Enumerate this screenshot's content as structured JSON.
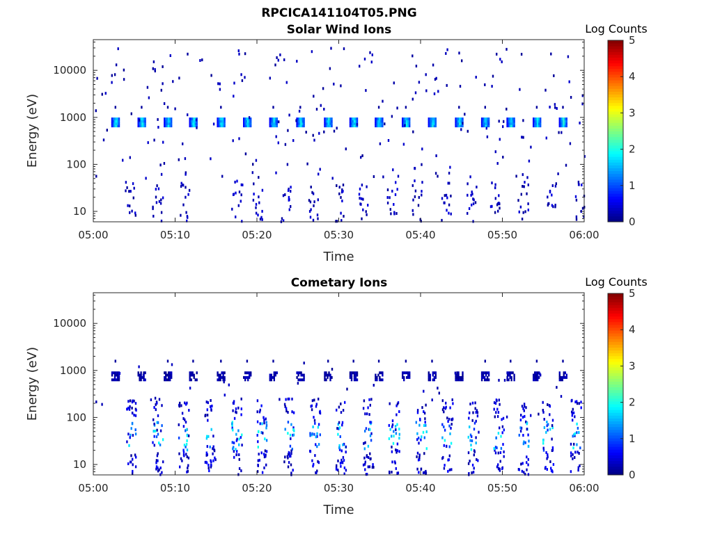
{
  "figure": {
    "filename_title": "RPCICA141104T05.PNG"
  },
  "chart_data": [
    {
      "type": "heatmap",
      "title": "Solar Wind Ions",
      "xlabel": "Time",
      "ylabel": "Energy (eV)",
      "x_ticks": [
        "05:00",
        "05:10",
        "05:20",
        "05:30",
        "05:40",
        "05:50",
        "06:00"
      ],
      "x_range_minutes": [
        0,
        60
      ],
      "y_scale": "log",
      "y_ticks": [
        "10",
        "100",
        "1000",
        "10000"
      ],
      "y_range_eV": [
        6,
        45000
      ],
      "colorbar": {
        "label": "Log Counts",
        "ticks": [
          "0",
          "1",
          "2",
          "3",
          "4",
          "5"
        ],
        "range": [
          0,
          5
        ],
        "colormap": "jet"
      },
      "features": {
        "peak_energy_eV": 780,
        "peak_times_minutes": [
          2.7,
          5.9,
          9.1,
          12.2,
          15.6,
          18.8,
          22.0,
          25.3,
          28.7,
          31.8,
          34.9,
          38.2,
          41.4,
          44.7,
          47.9,
          51.0,
          54.2,
          57.4
        ],
        "peak_log_counts": 1.8,
        "low_energy_bursts_minutes": [
          4.5,
          7.8,
          11.0,
          17.5,
          20.0,
          23.5,
          26.8,
          30.2,
          33.0,
          36.5,
          39.5,
          43.0,
          46.2,
          49.0,
          52.5,
          56.0,
          59.5
        ],
        "low_energy_range_eV": [
          6,
          45
        ]
      }
    },
    {
      "type": "heatmap",
      "title": "Cometary Ions",
      "xlabel": "Time",
      "ylabel": "Energy (eV)",
      "x_ticks": [
        "05:00",
        "05:10",
        "05:20",
        "05:30",
        "05:40",
        "05:50",
        "06:00"
      ],
      "x_range_minutes": [
        0,
        60
      ],
      "y_scale": "log",
      "y_ticks": [
        "10",
        "100",
        "1000",
        "10000"
      ],
      "y_range_eV": [
        6,
        45000
      ],
      "colorbar": {
        "label": "Log Counts",
        "ticks": [
          "0",
          "1",
          "2",
          "3",
          "4",
          "5"
        ],
        "range": [
          0,
          5
        ],
        "colormap": "jet"
      },
      "features": {
        "peak_energy_eV": 750,
        "peak_times_minutes": [
          2.7,
          5.9,
          9.1,
          12.2,
          15.6,
          18.8,
          22.0,
          25.3,
          28.7,
          31.8,
          34.9,
          38.2,
          41.4,
          44.7,
          47.9,
          51.0,
          54.2,
          57.4
        ],
        "peak_log_counts": 0.3,
        "burst_times_minutes": [
          4.5,
          7.8,
          11.0,
          14.2,
          17.5,
          20.5,
          23.8,
          27.0,
          30.2,
          33.5,
          36.7,
          40.0,
          43.2,
          46.4,
          49.5,
          52.5,
          55.5,
          58.9
        ],
        "burst_energy_range_eV": [
          6,
          250
        ],
        "burst_peak_log_counts": 1.8
      }
    }
  ]
}
